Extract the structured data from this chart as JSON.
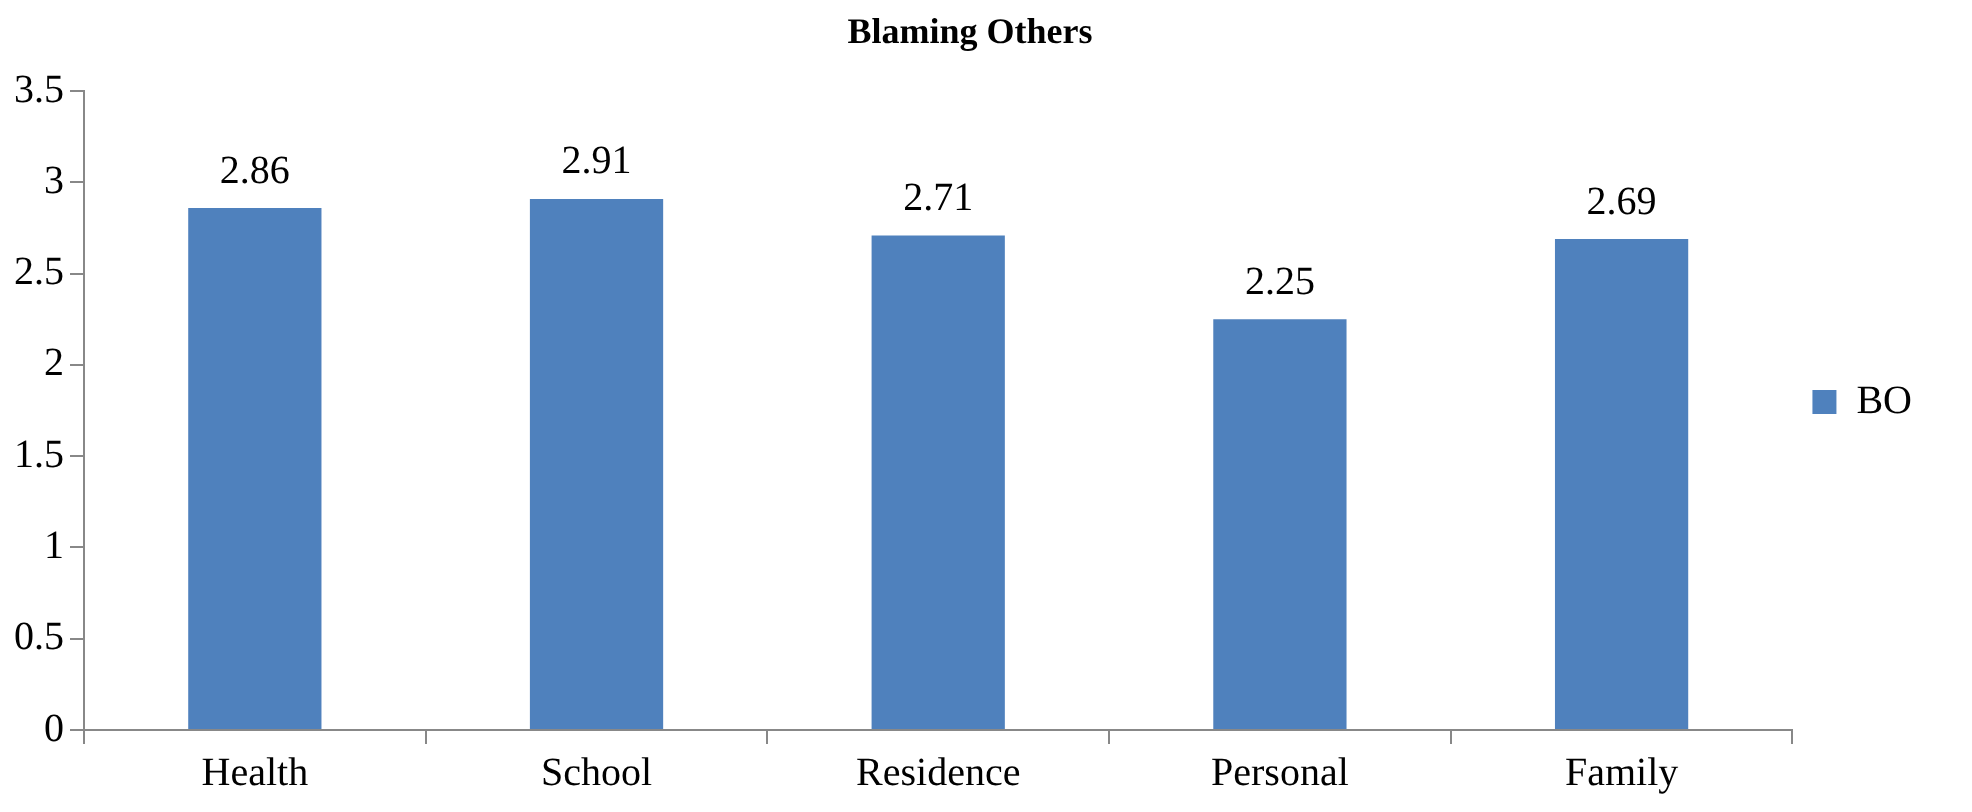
{
  "chart_data": {
    "type": "bar",
    "title": "Blaming Others",
    "categories": [
      "Health",
      "School",
      "Residence",
      "Personal",
      "Family"
    ],
    "series": [
      {
        "name": "BO",
        "color": "#4f81bd",
        "values": [
          2.86,
          2.91,
          2.71,
          2.25,
          2.69
        ]
      }
    ],
    "ylim": [
      0,
      3.5
    ],
    "yticks": [
      0,
      0.5,
      1,
      1.5,
      2,
      2.5,
      3,
      3.5
    ],
    "grid": false,
    "legend": "right",
    "data_labels": true
  }
}
